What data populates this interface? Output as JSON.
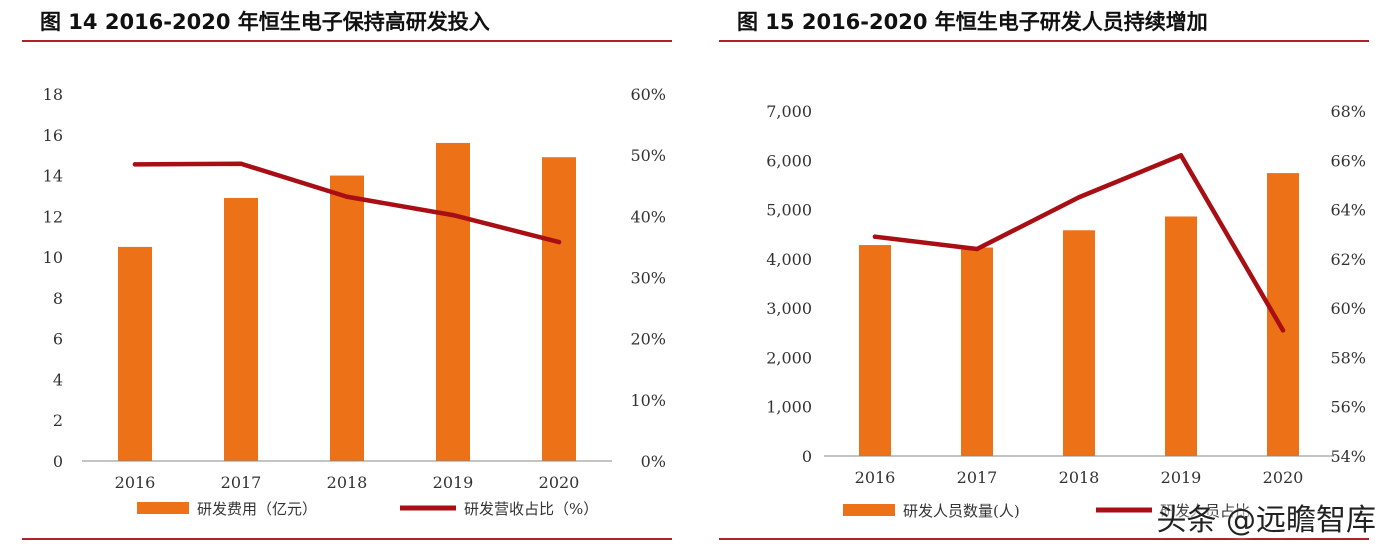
{
  "chart_data": [
    {
      "type": "bar+line",
      "title": "图 14 2016-2020 年恒生电子保持高研发投入",
      "categories": [
        "2016",
        "2017",
        "2018",
        "2019",
        "2020"
      ],
      "series": [
        {
          "name": "研发费用（亿元）",
          "kind": "bar",
          "axis": "left",
          "values": [
            10.5,
            12.9,
            14.0,
            15.6,
            14.9
          ],
          "color": "#ed7117"
        },
        {
          "name": "研发营收占比（%）",
          "kind": "line",
          "axis": "right",
          "values": [
            48.5,
            48.6,
            43.2,
            40.2,
            35.8
          ],
          "color": "#a80f14"
        }
      ],
      "y_left": {
        "min": 0,
        "max": 18,
        "step": 2,
        "ticks": [
          "0",
          "2",
          "4",
          "6",
          "8",
          "10",
          "12",
          "14",
          "16",
          "18"
        ]
      },
      "y_right": {
        "min": 0,
        "max": 60,
        "step": 10,
        "ticks": [
          "0%",
          "10%",
          "20%",
          "30%",
          "40%",
          "50%",
          "60%"
        ]
      },
      "legend": [
        "研发费用（亿元）",
        "研发营收占比（%）"
      ],
      "legend_position": "bottom"
    },
    {
      "type": "bar+line",
      "title": "图 15 2016-2020 年恒生电子研发人员持续增加",
      "categories": [
        "2016",
        "2017",
        "2018",
        "2019",
        "2020"
      ],
      "series": [
        {
          "name": "研发人员数量(人)",
          "kind": "bar",
          "axis": "left",
          "values": [
            4280,
            4230,
            4580,
            4860,
            5740
          ],
          "color": "#ed7117"
        },
        {
          "name": "研发人员占比",
          "kind": "line",
          "axis": "right",
          "values": [
            62.9,
            62.4,
            64.5,
            66.2,
            59.1
          ],
          "color": "#a80f14"
        }
      ],
      "y_left": {
        "min": 0,
        "max": 7000,
        "step": 1000,
        "ticks": [
          "0",
          "1,000",
          "2,000",
          "3,000",
          "4,000",
          "5,000",
          "6,000",
          "7,000"
        ]
      },
      "y_right": {
        "min": 54,
        "max": 68,
        "step": 2,
        "ticks": [
          "54%",
          "56%",
          "58%",
          "60%",
          "62%",
          "64%",
          "66%",
          "68%"
        ]
      },
      "legend": [
        "研发人员数量(人)",
        "研发人员占比"
      ],
      "legend_position": "bottom"
    }
  ],
  "watermark": "头条 @远瞻智库"
}
